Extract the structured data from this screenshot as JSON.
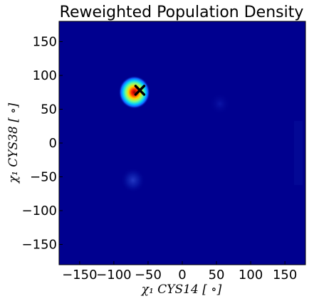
{
  "chart_data": {
    "type": "heatmap",
    "title": "Reweighted Population Density",
    "xlabel": "χ₁ CYS14 [ ∘]",
    "ylabel": "χ₁ CYS38 [ ∘]",
    "xlim": [
      -180,
      180
    ],
    "ylim": [
      -180,
      180
    ],
    "x_ticks": [
      -150,
      -100,
      -50,
      0,
      50,
      100,
      150
    ],
    "x_tick_labels": [
      "−150",
      "−100",
      "−50",
      "0",
      "50",
      "100",
      "150"
    ],
    "y_ticks": [
      150,
      100,
      50,
      0,
      -50,
      -100,
      -150
    ],
    "y_tick_labels": [
      "150",
      "100",
      "50",
      "0",
      "−50",
      "−100",
      "−150"
    ],
    "colormap": "jet",
    "background_color": "#00008f",
    "density_peaks": [
      {
        "x": -70,
        "y": 75,
        "intensity": 1.0
      },
      {
        "x": -72,
        "y": -55,
        "intensity": 0.12
      },
      {
        "x": 55,
        "y": 58,
        "intensity": 0.05
      }
    ],
    "marker": {
      "symbol": "x",
      "x": -62,
      "y": 78,
      "color": "#000000"
    },
    "grid": false
  }
}
